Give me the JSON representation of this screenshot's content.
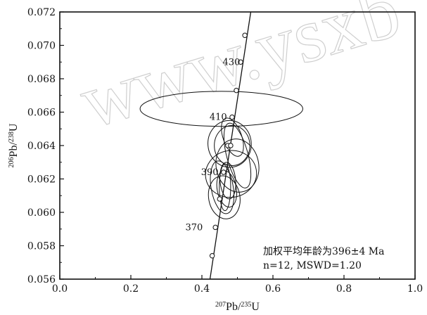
{
  "watermark": "www.ysxb",
  "chart_data": {
    "type": "scatter",
    "subtype": "concordia-diagram",
    "xlabel": {
      "sup": "207",
      "base": "Pb/",
      "sup2": "235",
      "base2": "U"
    },
    "ylabel": {
      "sup": "206",
      "base": "Pb/",
      "sup2": "238",
      "base2": "U"
    },
    "xlim": [
      0.0,
      1.0
    ],
    "ylim": [
      0.056,
      0.072
    ],
    "x_ticks": [
      0.0,
      0.2,
      0.4,
      0.6,
      0.8,
      1.0
    ],
    "x_tick_labels": [
      "0.0",
      "0.2",
      "0.4",
      "0.6",
      "0.8",
      "1.0"
    ],
    "y_ticks": [
      0.056,
      0.058,
      0.06,
      0.062,
      0.064,
      0.066,
      0.068,
      0.07,
      0.072
    ],
    "y_tick_labels": [
      "0.056",
      "0.058",
      "0.060",
      "0.062",
      "0.064",
      "0.066",
      "0.068",
      "0.070",
      "0.072"
    ],
    "grid": false,
    "concordia": {
      "x": [
        0.4228,
        0.5376
      ],
      "y": [
        0.056,
        0.072
      ],
      "age_markers": [
        {
          "x": 0.429,
          "y": 0.0574
        },
        {
          "x": 0.438,
          "y": 0.0591
        },
        {
          "x": 0.45,
          "y": 0.0608
        },
        {
          "x": 0.461,
          "y": 0.0624
        },
        {
          "x": 0.473,
          "y": 0.064
        },
        {
          "x": 0.485,
          "y": 0.0657
        },
        {
          "x": 0.497,
          "y": 0.0673
        },
        {
          "x": 0.509,
          "y": 0.069
        },
        {
          "x": 0.521,
          "y": 0.0706
        }
      ],
      "age_labels": [
        {
          "text": "430",
          "x": 0.483,
          "y": 0.069
        },
        {
          "text": "410",
          "x": 0.446,
          "y": 0.0657
        },
        {
          "text": "390",
          "x": 0.422,
          "y": 0.0624
        },
        {
          "text": "370",
          "x": 0.378,
          "y": 0.0591
        }
      ]
    },
    "error_ellipses": [
      {
        "cx": 0.455,
        "cy": 0.0662,
        "rx": 0.229,
        "ry": 0.00105,
        "angle": 0
      },
      {
        "cx": 0.5,
        "cy": 0.0628,
        "rx": 0.06,
        "ry": 0.0016,
        "angle": 10
      },
      {
        "cx": 0.478,
        "cy": 0.0641,
        "rx": 0.061,
        "ry": 0.0014,
        "angle": 5
      },
      {
        "cx": 0.485,
        "cy": 0.064,
        "rx": 0.05,
        "ry": 0.0012,
        "angle": 0
      },
      {
        "cx": 0.5,
        "cy": 0.0634,
        "rx": 0.03,
        "ry": 0.002,
        "angle": 15
      },
      {
        "cx": 0.486,
        "cy": 0.0645,
        "rx": 0.026,
        "ry": 0.0012,
        "angle": 20
      },
      {
        "cx": 0.457,
        "cy": 0.0615,
        "rx": 0.031,
        "ry": 0.0016,
        "angle": 10
      },
      {
        "cx": 0.463,
        "cy": 0.0609,
        "rx": 0.044,
        "ry": 0.0013,
        "angle": 10
      },
      {
        "cx": 0.473,
        "cy": 0.0619,
        "rx": 0.022,
        "ry": 0.0011,
        "angle": 5
      },
      {
        "cx": 0.465,
        "cy": 0.0615,
        "rx": 0.016,
        "ry": 0.0014,
        "angle": 0
      },
      {
        "cx": 0.482,
        "cy": 0.0623,
        "rx": 0.072,
        "ry": 0.0014,
        "angle": 10
      },
      {
        "cx": 0.47,
        "cy": 0.0614,
        "rx": 0.027,
        "ry": 0.0011,
        "angle": 10
      }
    ],
    "mean_point": {
      "x": 0.481,
      "y": 0.064
    },
    "annotations": {
      "line1": "加权平均年龄为396±4 Ma",
      "line2": "n=12, MSWD=1.20"
    }
  }
}
